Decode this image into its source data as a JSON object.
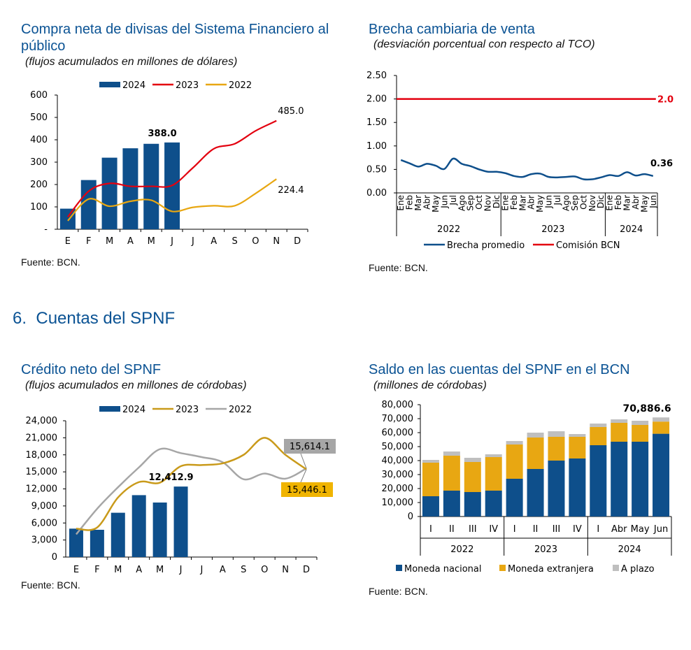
{
  "colors": {
    "navy": "#0e4f8b",
    "red": "#e3000f",
    "gold_light": "#e8a712",
    "gold_dark": "#c99a1a",
    "gray": "#a6a6a6",
    "mn": "#0e4f8b",
    "me": "#e8a712",
    "ap": "#bfbfbf",
    "title": "#0b5394"
  },
  "section": {
    "number": "6.",
    "label": "Cuentas del SPNF"
  },
  "charts": [
    {
      "id": "compra",
      "title": "Compra neta de divisas del Sistema Financiero al público",
      "subtitle": "(flujos acumulados en millones de dólares)",
      "source": "Fuente: BCN.",
      "type": "bar+line",
      "months": [
        "E",
        "F",
        "M",
        "A",
        "M",
        "J",
        "J",
        "A",
        "S",
        "O",
        "N",
        "D"
      ],
      "y_ticks": [
        "600",
        "500",
        "400",
        "300",
        "200",
        "100",
        "-"
      ],
      "ylim": [
        0,
        600
      ],
      "legend": [
        "2024",
        "2023",
        "2022"
      ],
      "series": [
        {
          "name": "2024",
          "type": "bar",
          "values": [
            92,
            220,
            320,
            362,
            382,
            388
          ]
        },
        {
          "name": "2023",
          "type": "line",
          "values": [
            55,
            170,
            205,
            192,
            192,
            196,
            275,
            360,
            382,
            440,
            485
          ]
        },
        {
          "name": "2022",
          "type": "line",
          "values": [
            38,
            135,
            103,
            125,
            130,
            80,
            98,
            105,
            105,
            160,
            224.4
          ]
        }
      ],
      "labels": {
        "bar_last": "388.0",
        "end_2023": "485.0",
        "end_2022": "224.4"
      }
    },
    {
      "id": "brecha",
      "title": "Brecha cambiaria de venta",
      "subtitle": "(desviación porcentual con respecto al TCO)",
      "source": "Fuente: BCN.",
      "type": "line",
      "y_ticks": [
        "2.50",
        "2.00",
        "1.50",
        "1.00",
        "0.50",
        "0.00"
      ],
      "ylim": [
        0,
        2.5
      ],
      "x_months": [
        "Ene",
        "Feb",
        "Mar",
        "Abr",
        "May",
        "Jun",
        "Jul",
        "Ago",
        "Sep",
        "Oct",
        "Nov",
        "Dic",
        "Ene",
        "Feb",
        "Mar",
        "Abr",
        "May",
        "Jun",
        "Jul",
        "Ago",
        "Sep",
        "Oct",
        "Nov",
        "Dic",
        "Ene",
        "Feb",
        "Mar",
        "Abr",
        "May",
        "Jun"
      ],
      "years": [
        "2022",
        "2023",
        "2024"
      ],
      "legend": [
        "Brecha promedio",
        "Comisión BCN"
      ],
      "series": [
        {
          "name": "Brecha promedio",
          "values": [
            0.7,
            0.63,
            0.56,
            0.62,
            0.58,
            0.51,
            0.73,
            0.62,
            0.57,
            0.5,
            0.45,
            0.45,
            0.42,
            0.36,
            0.34,
            0.4,
            0.41,
            0.34,
            0.33,
            0.34,
            0.35,
            0.29,
            0.29,
            0.33,
            0.38,
            0.36,
            0.44,
            0.37,
            0.4,
            0.36
          ]
        },
        {
          "name": "Comisión BCN",
          "value": 2.0
        }
      ],
      "labels": {
        "comision": "2.0",
        "last": "0.36"
      }
    },
    {
      "id": "credito",
      "title": "Crédito neto del SPNF",
      "subtitle": "(flujos acumulados en millones de córdobas)",
      "source": "Fuente: BCN.",
      "type": "bar+line",
      "months": [
        "E",
        "F",
        "M",
        "A",
        "M",
        "J",
        "J",
        "A",
        "S",
        "O",
        "N",
        "D"
      ],
      "y_ticks": [
        "24,000",
        "21,000",
        "18,000",
        "15,000",
        "12,000",
        "9,000",
        "6,000",
        "3,000",
        "0"
      ],
      "ylim": [
        0,
        24000
      ],
      "legend": [
        "2024",
        "2023",
        "2022"
      ],
      "series": [
        {
          "name": "2024",
          "type": "bar",
          "values": [
            5000,
            4800,
            7800,
            10900,
            9600,
            12412.9
          ]
        },
        {
          "name": "2023",
          "type": "line",
          "values": [
            5000,
            5200,
            10500,
            13200,
            13100,
            16000,
            16200,
            16500,
            18000,
            21000,
            18000,
            15446.1
          ]
        },
        {
          "name": "2022",
          "type": "line",
          "values": [
            4000,
            8500,
            12300,
            15800,
            19000,
            18300,
            17600,
            16700,
            13700,
            14700,
            13800,
            15614.1
          ]
        }
      ],
      "labels": {
        "bar_last": "12,412.9",
        "end_2022": "15,614.1",
        "end_2023": "15,446.1"
      }
    },
    {
      "id": "saldo",
      "title": "Saldo en las cuentas del SPNF en el BCN",
      "subtitle": "(millones de córdobas)",
      "source": "Fuente: BCN.",
      "type": "stacked-bar",
      "categories": [
        "I",
        "II",
        "III",
        "IV",
        "I",
        "II",
        "III",
        "IV",
        "I",
        "Abr",
        "May",
        "Jun"
      ],
      "years": [
        "2022",
        "2023",
        "2024"
      ],
      "y_ticks": [
        "80,000",
        "70,000",
        "60,000",
        "50,000",
        "40,000",
        "30,000",
        "20,000",
        "10,000",
        "0"
      ],
      "ylim": [
        0,
        80000
      ],
      "legend": [
        "Moneda nacional",
        "Moneda extranjera",
        "A plazo"
      ],
      "series": [
        {
          "name": "Moneda nacional",
          "values": [
            14500,
            18500,
            17500,
            18500,
            27000,
            34000,
            40000,
            41500,
            51000,
            53500,
            53500,
            59200
          ]
        },
        {
          "name": "Moneda extranjera",
          "values": [
            24000,
            25000,
            21500,
            24000,
            24500,
            22500,
            17000,
            15500,
            13000,
            13500,
            12000,
            8700
          ]
        },
        {
          "name": "A plazo",
          "values": [
            2000,
            3000,
            3000,
            2000,
            2500,
            3500,
            4000,
            2000,
            2500,
            2500,
            3000,
            2986.6
          ]
        }
      ],
      "labels": {
        "total_last": "70,886.6"
      }
    }
  ]
}
